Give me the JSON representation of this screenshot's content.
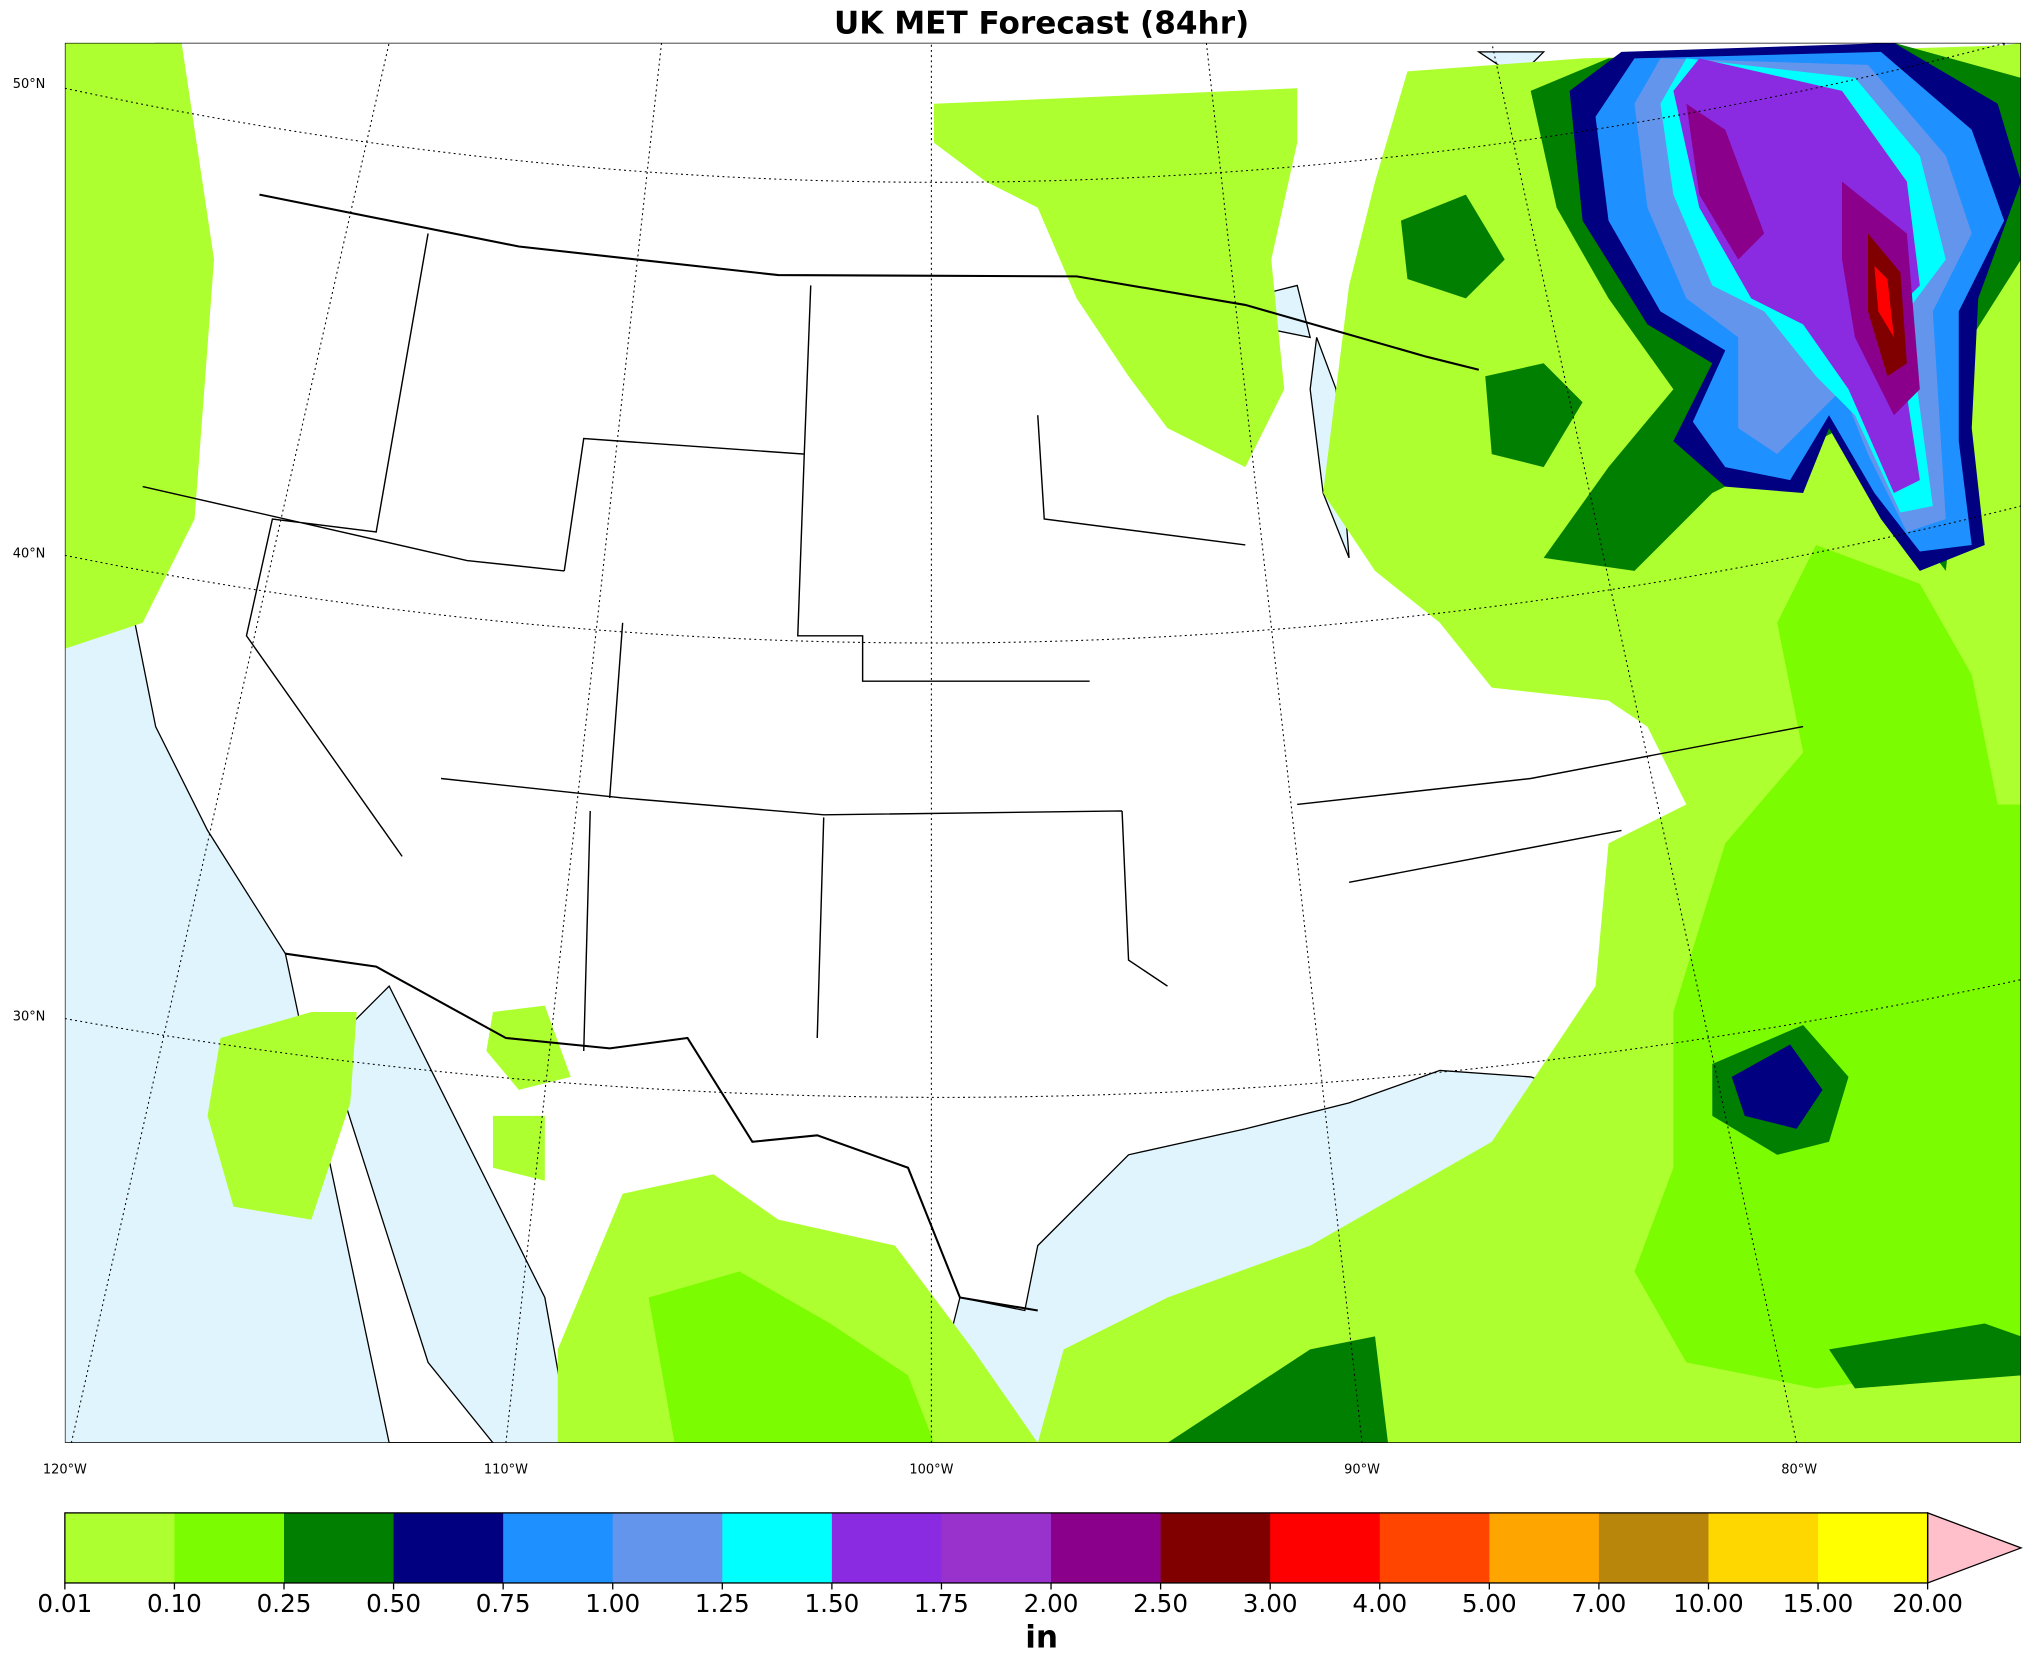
{
  "title": "UK MET Forecast (84hr)",
  "lat_labels": [
    "50°N",
    "40°N",
    "30°N"
  ],
  "lon_labels": [
    "120°W",
    "110°W",
    "100°W",
    "90°W",
    "80°W"
  ],
  "colorbar": {
    "label": "in",
    "levels": [
      0.01,
      {
        "value": 0.1,
        "label": "0.10"
      },
      0.25,
      {
        "value": 0.5,
        "label": "0.50"
      },
      0.75,
      {
        "value": 1,
        "label": "1.00"
      },
      1.25,
      {
        "value": 1.5,
        "label": "1.50"
      },
      1.75,
      {
        "value": 2,
        "label": "2.00"
      },
      {
        "value": 2.5,
        "label": "2.50"
      },
      {
        "value": 3,
        "label": "3.00"
      },
      {
        "value": 4,
        "label": "4.00"
      },
      {
        "value": 5,
        "label": "5.00"
      },
      {
        "value": 7,
        "label": "7.00"
      },
      {
        "value": 10,
        "label": "10.00"
      },
      {
        "value": 15,
        "label": "15.00"
      },
      {
        "value": 20,
        "label": "20.00"
      }
    ],
    "colors": [
      "#adff2f",
      "#7cfc00",
      "#007f00",
      "#000080",
      "#1e90ff",
      "#6495ed",
      "#00ffff",
      "#8a2be2",
      "#9932cc",
      "#8b008b",
      "#800000",
      "#ff0000",
      "#ff4500",
      "#ffa500",
      "#b8860b",
      "#ffd700",
      "#ffff00"
    ],
    "extend_color": "#ffc0cb"
  }
}
